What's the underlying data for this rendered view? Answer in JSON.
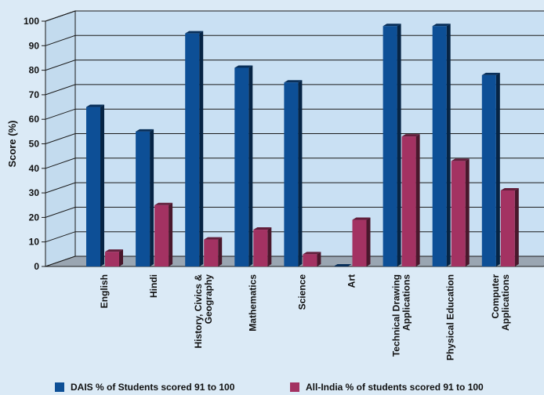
{
  "chart_data": {
    "type": "bar",
    "title": "",
    "xlabel": "",
    "ylabel": "Score (%)",
    "ylim": [
      0,
      100
    ],
    "yticks": [
      "0",
      "10",
      "20",
      "30",
      "40",
      "50",
      "60",
      "70",
      "80",
      "90",
      "100"
    ],
    "grid": true,
    "legend_position": "bottom",
    "categories": [
      [
        "English"
      ],
      [
        "Hindi"
      ],
      [
        "History, Civics &",
        "Geography"
      ],
      [
        "Mathematics"
      ],
      [
        "Science"
      ],
      [
        "Art"
      ],
      [
        "Technical Drawing",
        "Applications"
      ],
      [
        "Physical Education"
      ],
      [
        "Computer",
        "Applications"
      ]
    ],
    "series": [
      {
        "name": "DAIS % of Students scored 91 to 100",
        "color": "#0d4f96",
        "values": [
          65,
          55,
          95,
          81,
          75,
          0,
          98,
          98,
          78
        ]
      },
      {
        "name": "All-India % of students scored 91 to 100",
        "color": "#a33262",
        "values": [
          6,
          25,
          11,
          15,
          5,
          19,
          53,
          43,
          31
        ]
      }
    ]
  }
}
